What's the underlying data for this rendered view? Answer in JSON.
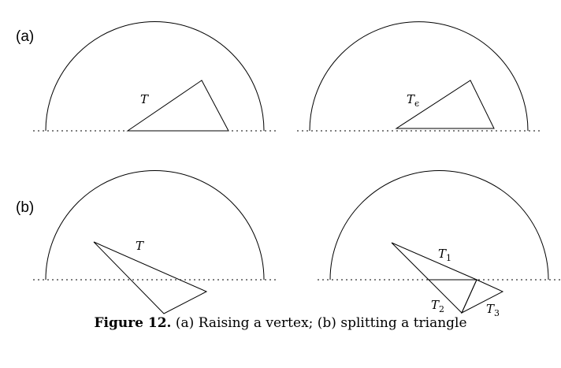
{
  "panels": {
    "a": {
      "label": "(a)"
    },
    "b": {
      "label": "(b)"
    }
  },
  "labels": {
    "T_a_left": "T",
    "T_eps_main": "T",
    "T_eps_sub": "ϵ",
    "T_b_left": "T",
    "T1_main": "T",
    "T1_sub": "1",
    "T2_main": "T",
    "T2_sub": "2",
    "T3_main": "T",
    "T3_sub": "3"
  },
  "caption": {
    "figure_number": "Figure 12.",
    "text": "(a) Raising a vertex; (b) splitting a triangle"
  }
}
